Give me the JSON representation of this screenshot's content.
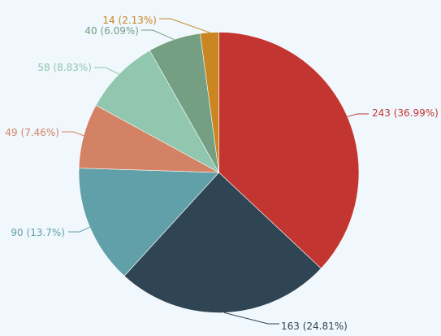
{
  "chart_data": {
    "type": "pie",
    "title": "",
    "legend": "none",
    "slices": [
      {
        "value": 243,
        "label": "243 (36.99%)",
        "color": "#c23531"
      },
      {
        "value": 163,
        "label": "163 (24.81%)",
        "color": "#2f4554"
      },
      {
        "value": 90,
        "label": "90 (13.7%)",
        "color": "#61a0a8"
      },
      {
        "value": 49,
        "label": "49 (7.46%)",
        "color": "#d48265"
      },
      {
        "value": 58,
        "label": "58 (8.83%)",
        "color": "#91c7ae"
      },
      {
        "value": 40,
        "label": "40 (6.09%)",
        "color": "#749f83"
      },
      {
        "value": 14,
        "label": "14 (2.13%)",
        "color": "#ca8622"
      }
    ]
  }
}
